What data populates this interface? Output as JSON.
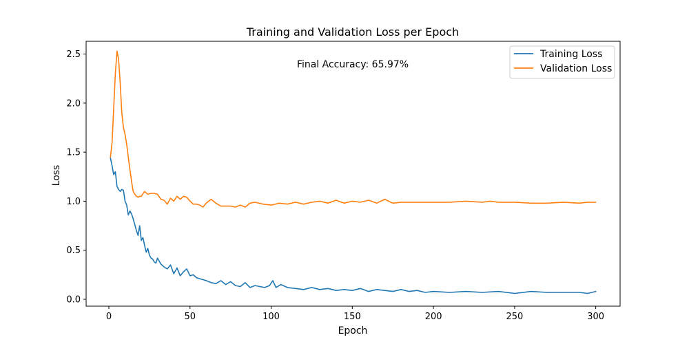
{
  "chart_data": {
    "type": "line",
    "title": "Training and Validation Loss per Epoch",
    "xlabel": "Epoch",
    "ylabel": "Loss",
    "xlim": [
      -14,
      315
    ],
    "ylim": [
      -0.07,
      2.63
    ],
    "xticks": [
      0,
      50,
      100,
      150,
      200,
      250,
      300
    ],
    "yticks": [
      0.0,
      0.5,
      1.0,
      1.5,
      2.0,
      2.5
    ],
    "xtick_labels": [
      "0",
      "50",
      "100",
      "150",
      "200",
      "250",
      "300"
    ],
    "ytick_labels": [
      "0.0",
      "0.5",
      "1.0",
      "1.5",
      "2.0",
      "2.5"
    ],
    "grid": false,
    "legend_position": "top-right",
    "annotation": "Final Accuracy: 65.97%",
    "series": [
      {
        "name": "Training Loss",
        "color": "#1f77b4",
        "x": [
          1,
          2,
          3,
          4,
          5,
          6,
          7,
          8,
          9,
          10,
          11,
          12,
          13,
          14,
          15,
          16,
          17,
          18,
          19,
          20,
          21,
          22,
          23,
          24,
          25,
          26,
          27,
          28,
          29,
          30,
          32,
          34,
          36,
          38,
          40,
          42,
          44,
          46,
          48,
          50,
          52,
          54,
          56,
          58,
          60,
          63,
          66,
          69,
          72,
          75,
          78,
          81,
          84,
          87,
          90,
          93,
          96,
          99,
          101,
          103,
          106,
          110,
          115,
          120,
          125,
          130,
          135,
          140,
          145,
          150,
          155,
          160,
          165,
          170,
          175,
          180,
          185,
          190,
          195,
          200,
          210,
          220,
          230,
          240,
          250,
          260,
          270,
          280,
          290,
          295,
          300
        ],
        "values": [
          1.44,
          1.36,
          1.27,
          1.3,
          1.15,
          1.12,
          1.1,
          1.12,
          1.11,
          1.0,
          0.96,
          0.86,
          0.9,
          0.87,
          0.82,
          0.76,
          0.7,
          0.65,
          0.75,
          0.6,
          0.63,
          0.55,
          0.48,
          0.52,
          0.45,
          0.42,
          0.41,
          0.38,
          0.37,
          0.42,
          0.36,
          0.33,
          0.31,
          0.35,
          0.26,
          0.32,
          0.24,
          0.28,
          0.31,
          0.24,
          0.25,
          0.22,
          0.21,
          0.2,
          0.19,
          0.17,
          0.16,
          0.19,
          0.15,
          0.18,
          0.14,
          0.13,
          0.17,
          0.12,
          0.14,
          0.13,
          0.12,
          0.14,
          0.19,
          0.12,
          0.15,
          0.12,
          0.11,
          0.1,
          0.12,
          0.1,
          0.11,
          0.09,
          0.1,
          0.09,
          0.11,
          0.08,
          0.1,
          0.09,
          0.08,
          0.1,
          0.08,
          0.09,
          0.07,
          0.08,
          0.07,
          0.08,
          0.07,
          0.08,
          0.06,
          0.08,
          0.07,
          0.07,
          0.07,
          0.06,
          0.08
        ]
      },
      {
        "name": "Validation Loss",
        "color": "#ff7f0e",
        "x": [
          1,
          2,
          3,
          4,
          5,
          6,
          7,
          8,
          9,
          10,
          11,
          12,
          13,
          14,
          15,
          16,
          17,
          18,
          19,
          20,
          22,
          24,
          26,
          28,
          30,
          32,
          34,
          36,
          38,
          40,
          42,
          44,
          46,
          48,
          50,
          52,
          54,
          56,
          58,
          60,
          63,
          66,
          69,
          72,
          75,
          78,
          81,
          84,
          87,
          90,
          95,
          100,
          105,
          110,
          115,
          120,
          125,
          130,
          135,
          140,
          145,
          150,
          155,
          160,
          165,
          170,
          175,
          180,
          185,
          190,
          195,
          200,
          210,
          220,
          230,
          235,
          240,
          250,
          260,
          270,
          280,
          290,
          295,
          300
        ],
        "values": [
          1.45,
          1.6,
          1.95,
          2.3,
          2.53,
          2.45,
          2.2,
          1.9,
          1.75,
          1.68,
          1.58,
          1.45,
          1.32,
          1.2,
          1.1,
          1.07,
          1.05,
          1.04,
          1.05,
          1.05,
          1.1,
          1.07,
          1.08,
          1.08,
          1.07,
          1.02,
          1.01,
          0.97,
          1.03,
          1.0,
          1.05,
          1.02,
          1.05,
          1.04,
          1.0,
          0.97,
          0.97,
          0.96,
          0.94,
          0.98,
          1.02,
          0.98,
          0.95,
          0.95,
          0.95,
          0.94,
          0.96,
          0.94,
          0.98,
          0.99,
          0.97,
          0.96,
          0.98,
          0.97,
          0.99,
          0.97,
          0.99,
          1.0,
          0.98,
          1.01,
          0.98,
          1.0,
          0.99,
          1.01,
          0.98,
          1.02,
          0.98,
          0.99,
          0.99,
          0.99,
          0.99,
          0.99,
          0.99,
          1.0,
          0.99,
          1.0,
          0.99,
          0.99,
          0.98,
          0.98,
          0.99,
          0.98,
          0.99,
          0.99
        ]
      }
    ]
  }
}
